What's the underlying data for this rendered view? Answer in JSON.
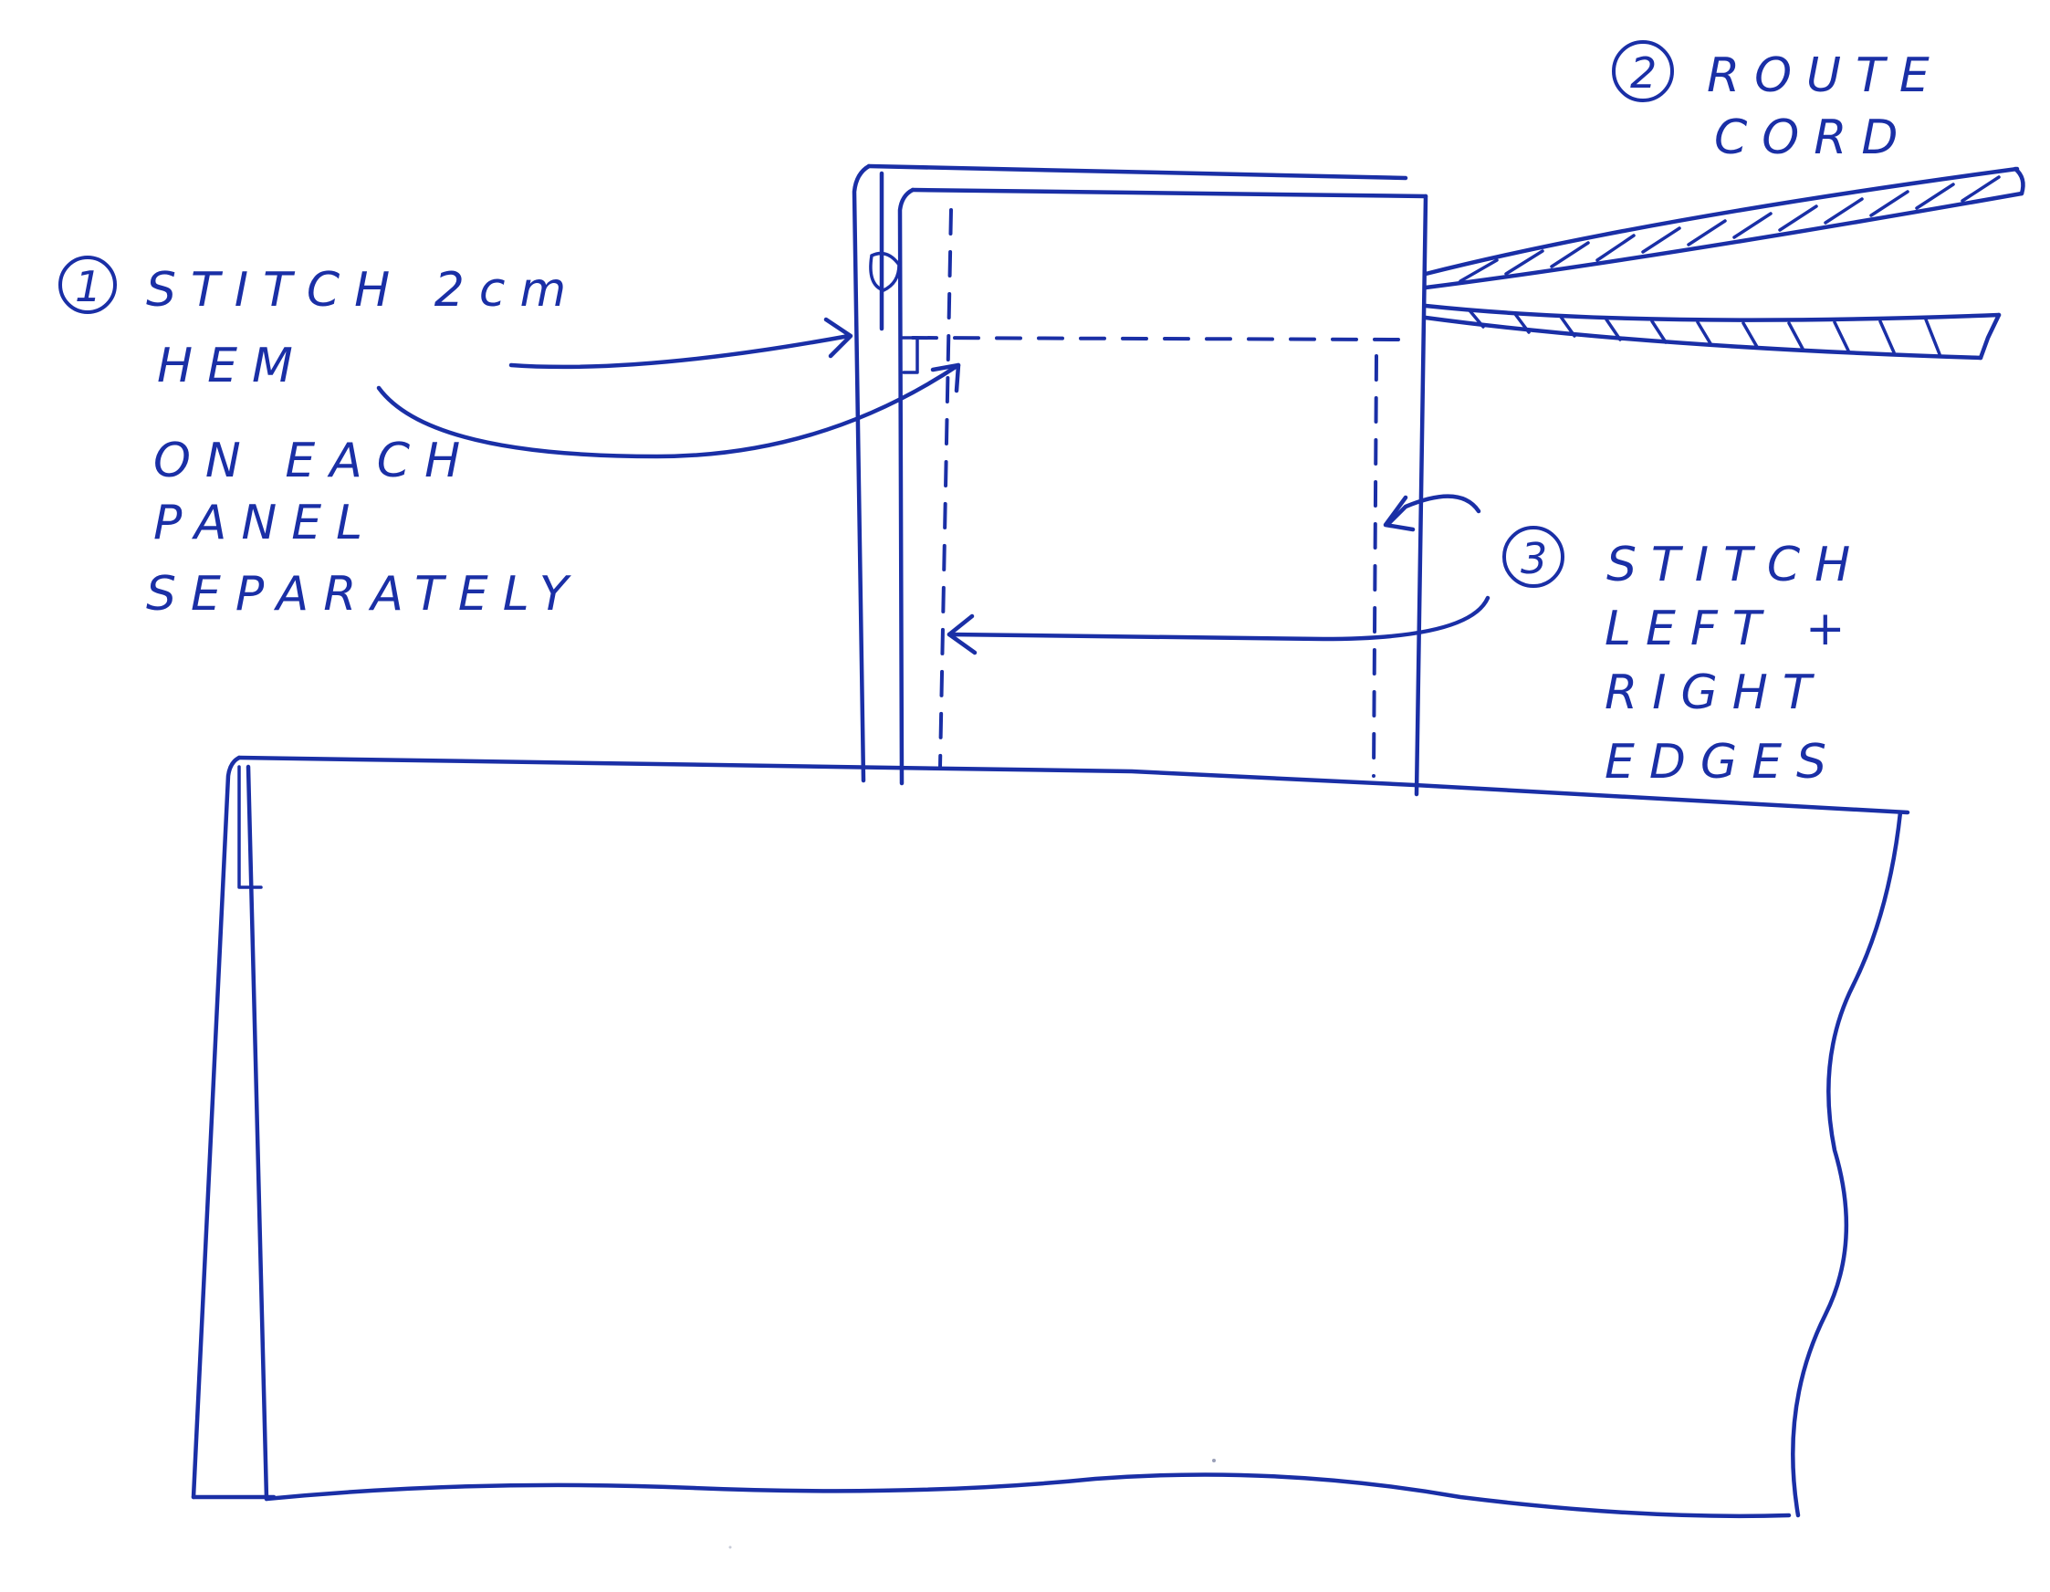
{
  "annotations": {
    "step1": {
      "number": "1",
      "lines": [
        "STITCH 2cm",
        "HEM",
        "ON EACH",
        "PANEL",
        "SEPARATELY"
      ]
    },
    "step2": {
      "number": "2",
      "lines": [
        "ROUTE",
        "CORD"
      ]
    },
    "step3": {
      "number": "3",
      "lines": [
        "STITCH",
        "LEFT +",
        "RIGHT",
        "EDGES"
      ]
    }
  },
  "colors": {
    "ink": "#1a2fa6",
    "paper": "#ffffff"
  }
}
